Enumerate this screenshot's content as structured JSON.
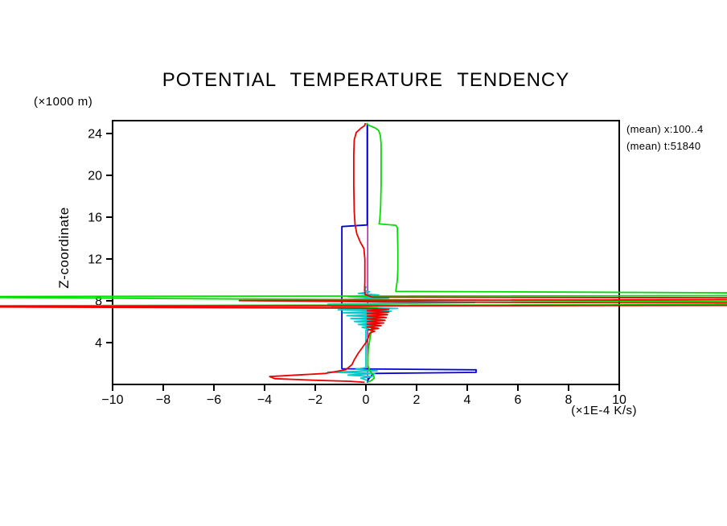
{
  "header": {
    "title": "POTENTIAL TEMPERATURE TENDENCY"
  },
  "annotations": {
    "line1": "(mean) x:100..4",
    "line2": "(mean) t:51840"
  },
  "axes": {
    "y_label": "Z-coordinate",
    "y_units": "(×1000 m)",
    "x_units": "(×1E-4 K/s)",
    "x_ticks": [
      -10,
      -8,
      -6,
      -4,
      -2,
      0,
      2,
      4,
      6,
      8,
      10
    ],
    "y_ticks": [
      4,
      8,
      12,
      16,
      20,
      24
    ]
  },
  "colors": {
    "frame": "#000000",
    "red": "#ee0000",
    "green": "#00dd00",
    "blue": "#0000dd",
    "cyan": "#00cccc",
    "magenta": "#bb00bb"
  },
  "chart_data": {
    "type": "line",
    "title": "POTENTIAL TEMPERATURE TENDENCY",
    "xlabel": "(×1E-4 K/s)",
    "ylabel": "Z-coordinate (×1000 m)",
    "xlim": [
      -10,
      10
    ],
    "ylim": [
      0,
      25.23
    ],
    "grid": false,
    "legend": "none",
    "note": "Vertical profiles of potential temperature tendency components; off-scale spike values near z=7.5-8.5 run past the plot frame across the page",
    "series": [
      {
        "name": "series-magenta",
        "color": "#bb00bb",
        "width": 1.4,
        "points": [
          [
            0.07,
            24.9
          ],
          [
            0.07,
            0.15
          ]
        ]
      },
      {
        "name": "series-blue",
        "color": "#0000dd",
        "width": 1.8,
        "points": [
          [
            0.05,
            24.9
          ],
          [
            0.05,
            15.25
          ],
          [
            -0.95,
            15.1
          ],
          [
            -0.95,
            1.5
          ],
          [
            4.35,
            1.4
          ],
          [
            4.35,
            1.15
          ],
          [
            0.3,
            1.05
          ],
          [
            0.1,
            0.5
          ],
          [
            0.05,
            0.15
          ]
        ]
      },
      {
        "name": "series-cyan",
        "color": "#00cccc",
        "width": 1.8,
        "points": [
          [
            0.02,
            9.4
          ],
          [
            -0.05,
            9.0
          ],
          [
            0.15,
            8.85
          ],
          [
            -0.3,
            8.7
          ],
          [
            0.5,
            8.55
          ],
          [
            -0.7,
            8.4
          ],
          [
            0.9,
            8.25
          ],
          [
            -1.1,
            8.1
          ],
          [
            1.3,
            7.95
          ],
          [
            4.3,
            7.83
          ],
          [
            -1.5,
            7.68
          ],
          [
            1.5,
            7.53
          ],
          [
            -1.35,
            7.4
          ],
          [
            1.25,
            7.27
          ],
          [
            -1.1,
            7.14
          ],
          [
            1.0,
            7.0
          ],
          [
            -0.9,
            6.86
          ],
          [
            0.85,
            6.72
          ],
          [
            -0.75,
            6.58
          ],
          [
            0.7,
            6.44
          ],
          [
            -0.6,
            6.3
          ],
          [
            0.55,
            6.16
          ],
          [
            -0.45,
            6.02
          ],
          [
            0.4,
            5.88
          ],
          [
            -0.3,
            5.74
          ],
          [
            0.25,
            5.6
          ],
          [
            -0.15,
            5.46
          ],
          [
            0.1,
            5.32
          ],
          [
            0.0,
            5.2
          ],
          [
            0.0,
            1.6
          ],
          [
            -0.4,
            1.45
          ],
          [
            0.45,
            1.3
          ],
          [
            -1.5,
            1.18
          ],
          [
            0.35,
            1.05
          ],
          [
            -0.7,
            0.9
          ],
          [
            0.25,
            0.75
          ],
          [
            -0.2,
            0.6
          ],
          [
            0.05,
            0.4
          ]
        ]
      },
      {
        "name": "series-green",
        "color": "#00dd00",
        "width": 1.8,
        "points": [
          [
            0.03,
            25.0
          ],
          [
            0.1,
            24.8
          ],
          [
            0.35,
            24.55
          ],
          [
            0.5,
            24.3
          ],
          [
            0.57,
            23.8
          ],
          [
            0.6,
            23.0
          ],
          [
            0.6,
            21.0
          ],
          [
            0.6,
            19.0
          ],
          [
            0.58,
            17.0
          ],
          [
            0.55,
            15.8
          ],
          [
            0.52,
            15.35
          ],
          [
            1.18,
            15.22
          ],
          [
            1.24,
            15.0
          ],
          [
            1.26,
            13.0
          ],
          [
            1.26,
            11.0
          ],
          [
            1.24,
            10.0
          ],
          [
            1.2,
            9.3
          ],
          [
            1.18,
            8.9
          ],
          [
            35,
            8.55
          ],
          [
            -20,
            8.4
          ],
          [
            0.3,
            8.1
          ],
          [
            35,
            7.7
          ],
          [
            -20,
            7.52
          ],
          [
            0.45,
            7.32
          ],
          [
            0.35,
            7.1
          ],
          [
            0.3,
            6.5
          ],
          [
            0.25,
            5.8
          ],
          [
            0.2,
            5.0
          ],
          [
            0.15,
            4.2
          ],
          [
            0.1,
            3.4
          ],
          [
            0.08,
            2.6
          ],
          [
            0.08,
            1.8
          ],
          [
            0.15,
            1.3
          ],
          [
            0.3,
            0.9
          ],
          [
            0.33,
            0.6
          ],
          [
            0.2,
            0.35
          ],
          [
            0.05,
            0.2
          ]
        ]
      },
      {
        "name": "series-red",
        "color": "#ee0000",
        "width": 1.8,
        "points": [
          [
            -0.02,
            25.0
          ],
          [
            -0.05,
            24.75
          ],
          [
            -0.2,
            24.5
          ],
          [
            -0.38,
            24.1
          ],
          [
            -0.46,
            23.4
          ],
          [
            -0.48,
            22.0
          ],
          [
            -0.48,
            19.0
          ],
          [
            -0.46,
            16.5
          ],
          [
            -0.43,
            15.3
          ],
          [
            -0.36,
            14.4
          ],
          [
            -0.22,
            13.6
          ],
          [
            -0.08,
            13.0
          ],
          [
            -0.04,
            12.0
          ],
          [
            -0.04,
            10.0
          ],
          [
            -0.05,
            9.0
          ],
          [
            -0.03,
            8.6
          ],
          [
            0.25,
            8.35
          ],
          [
            35,
            8.2
          ],
          [
            -5,
            8.02
          ],
          [
            0.6,
            7.9
          ],
          [
            35,
            7.62
          ],
          [
            -20,
            7.45
          ],
          [
            -0.3,
            7.3
          ],
          [
            0.9,
            7.18
          ],
          [
            0.05,
            7.05
          ],
          [
            0.9,
            6.92
          ],
          [
            0.05,
            6.79
          ],
          [
            0.85,
            6.66
          ],
          [
            0.05,
            6.53
          ],
          [
            0.8,
            6.4
          ],
          [
            0.05,
            6.27
          ],
          [
            0.75,
            6.14
          ],
          [
            0.05,
            6.01
          ],
          [
            0.7,
            5.88
          ],
          [
            0.05,
            5.75
          ],
          [
            0.6,
            5.62
          ],
          [
            0.05,
            5.49
          ],
          [
            0.5,
            5.36
          ],
          [
            0.1,
            5.23
          ],
          [
            0.35,
            5.1
          ],
          [
            0.15,
            4.9
          ],
          [
            0.1,
            4.5
          ],
          [
            0.0,
            4.0
          ],
          [
            -0.15,
            3.5
          ],
          [
            -0.3,
            3.0
          ],
          [
            -0.45,
            2.4
          ],
          [
            -0.55,
            1.9
          ],
          [
            -0.8,
            1.4
          ],
          [
            -1.6,
            1.05
          ],
          [
            -3.8,
            0.75
          ],
          [
            -3.6,
            0.55
          ],
          [
            -2.0,
            0.4
          ],
          [
            -0.6,
            0.3
          ],
          [
            -0.05,
            0.2
          ]
        ]
      }
    ]
  }
}
